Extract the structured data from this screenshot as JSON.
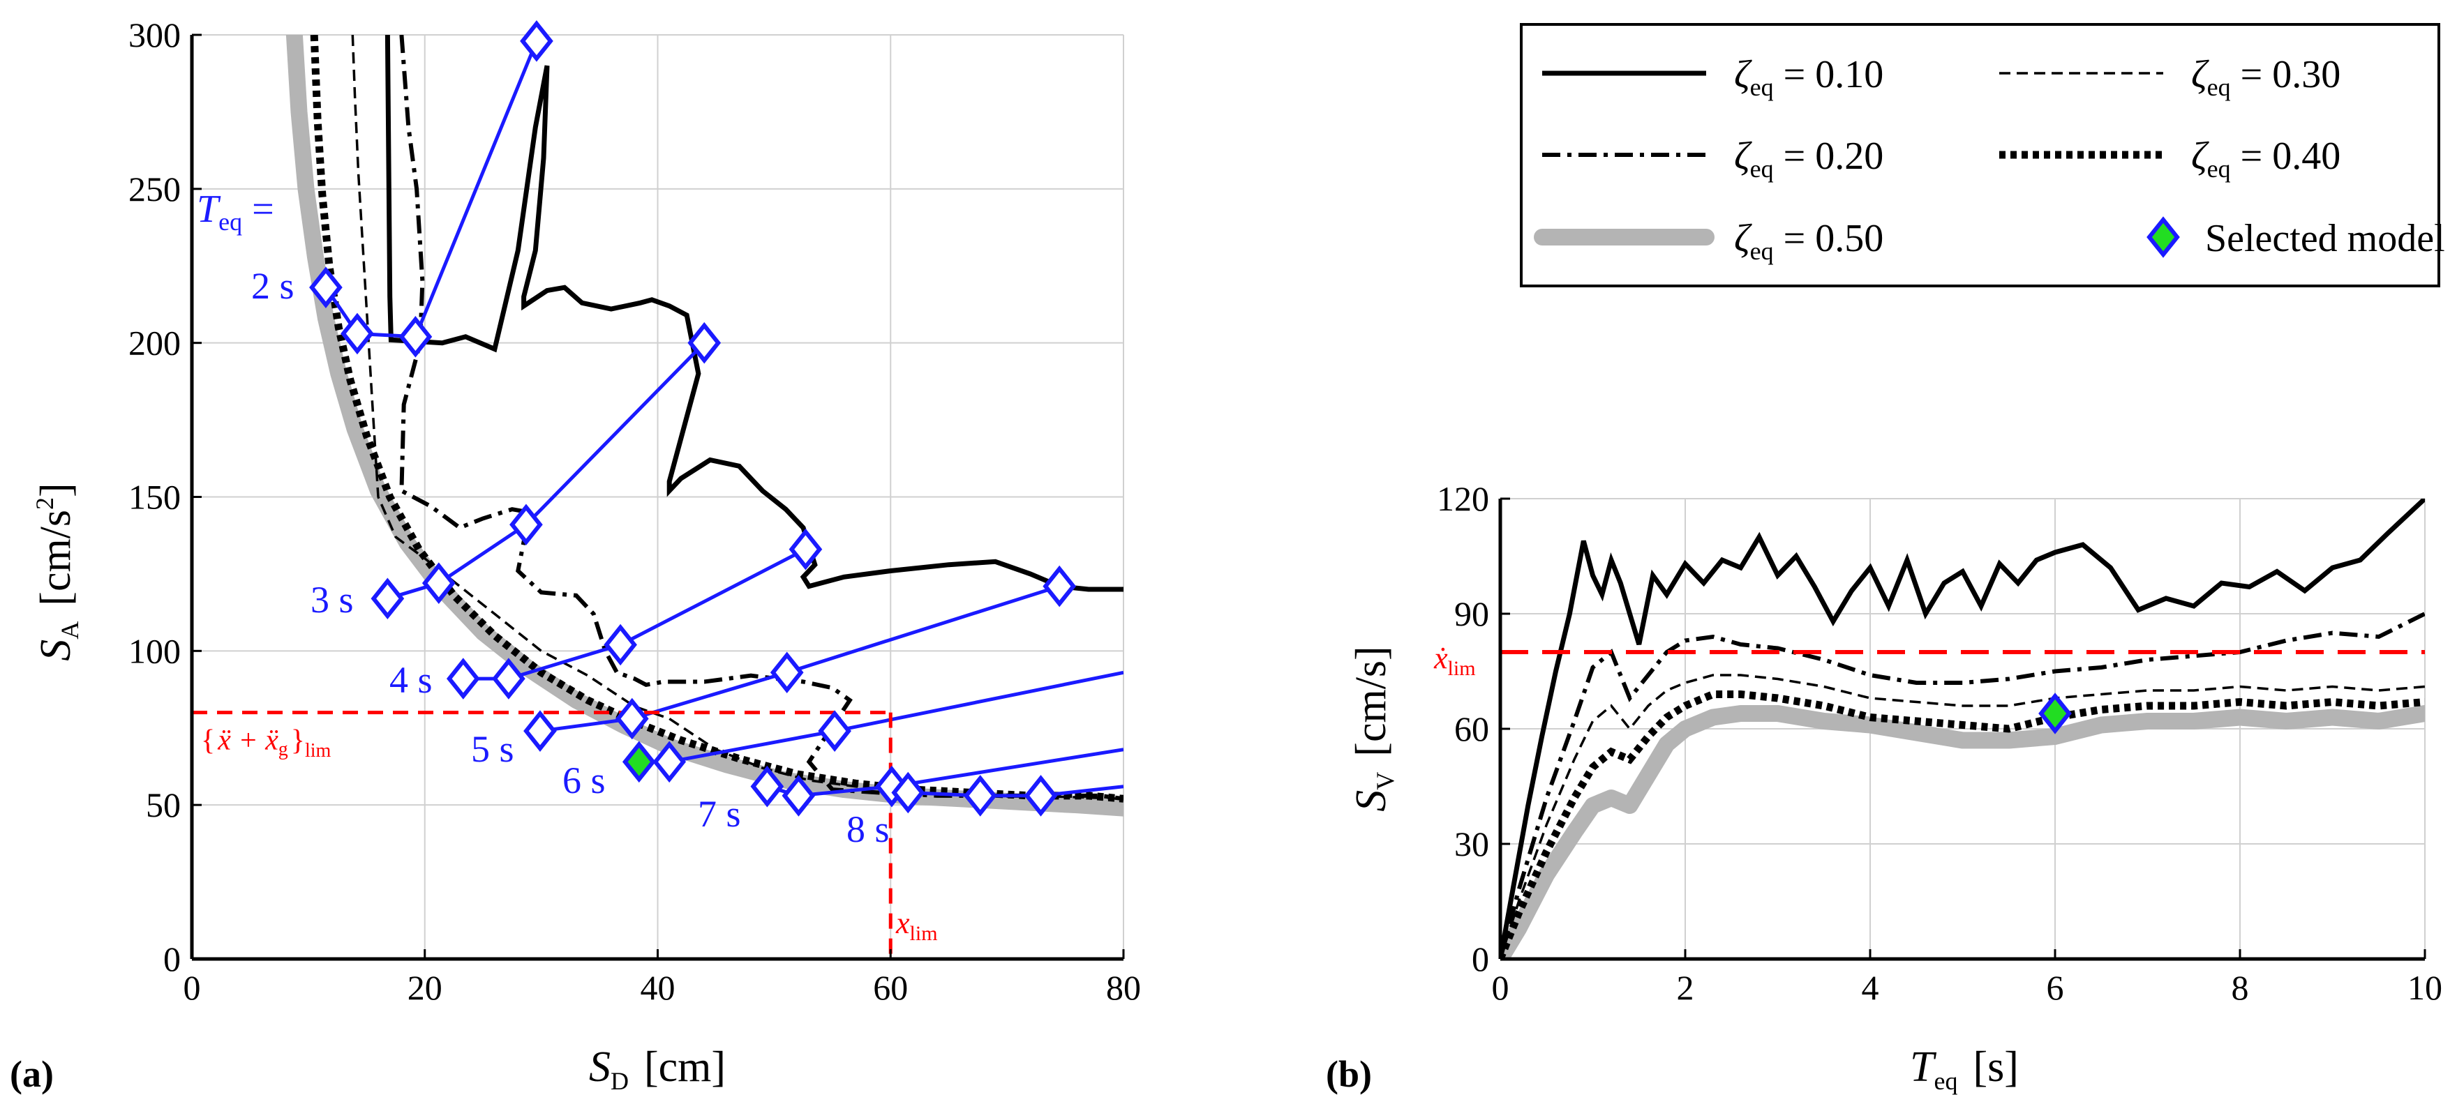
{
  "chart_data": [
    {
      "id": "a",
      "panel_label": "(a)",
      "type": "line",
      "xlabel": {
        "symbol": "S",
        "sub": "D",
        "unit": "[cm]"
      },
      "ylabel": {
        "symbol": "S",
        "sub": "A",
        "unit": "[cm/s",
        "unit_sup": "2",
        "unit_end": "]"
      },
      "xlim": [
        0,
        80
      ],
      "ylim": [
        0,
        300
      ],
      "xticks": [
        0,
        20,
        40,
        60,
        80
      ],
      "yticks": [
        0,
        50,
        100,
        150,
        200,
        250,
        300
      ],
      "grid": true,
      "series": [
        {
          "name": "ζ_eq = 0.50",
          "style": "gray-band",
          "x": [
            8.8,
            9.2,
            9.8,
            10.6,
            11.5,
            12.6,
            14,
            16,
            18.5,
            21.5,
            25,
            29,
            33,
            37,
            41,
            46,
            51,
            56,
            61,
            66,
            71,
            76,
            80
          ],
          "y": [
            300,
            275,
            250,
            228,
            208,
            190,
            172,
            152,
            135,
            120,
            106,
            94,
            84,
            76,
            69,
            63,
            58,
            55,
            53,
            52,
            51,
            50,
            49
          ]
        },
        {
          "name": "ζ_eq = 0.40",
          "style": "dotted",
          "x": [
            10.5,
            10.8,
            11.2,
            11.8,
            12.6,
            13.6,
            15,
            17,
            19.5,
            22.5,
            26,
            30,
            34,
            38,
            42,
            47,
            52,
            57,
            62,
            67,
            72,
            77,
            80
          ],
          "y": [
            300,
            272,
            248,
            225,
            205,
            188,
            170,
            150,
            133,
            118,
            105,
            93,
            84,
            77,
            71,
            65,
            60,
            57,
            55,
            54,
            53,
            53,
            52
          ]
        },
        {
          "name": "ζ_eq = 0.30",
          "style": "dashed",
          "x": [
            13.8,
            14.0,
            14.3,
            14.7,
            15.1,
            15.5,
            16,
            17.5,
            20,
            23,
            26,
            30,
            34,
            38,
            41,
            45,
            49,
            53,
            57,
            62,
            67,
            72,
            80
          ],
          "y": [
            300,
            280,
            255,
            230,
            205,
            180,
            150,
            137,
            130,
            121,
            112,
            100,
            92,
            82,
            78,
            68,
            62,
            58,
            56,
            54,
            53,
            53,
            52
          ]
        },
        {
          "name": "ζ_eq = 0.20",
          "style": "dashdot",
          "x": [
            18.0,
            18.6,
            19.3,
            19.8,
            19.6,
            18.2,
            18.0,
            20.5,
            23,
            25,
            27.5,
            29,
            28,
            30,
            33,
            34.5,
            35.5,
            36.5,
            38,
            39,
            40.5,
            44,
            48,
            52.5,
            55,
            56.5,
            53,
            55,
            59,
            64,
            69,
            74,
            78,
            80
          ],
          "y": [
            300,
            270,
            250,
            220,
            200,
            180,
            152,
            147,
            140,
            143,
            146,
            145,
            126,
            119,
            118,
            112,
            100,
            93,
            91,
            89,
            90,
            90,
            92,
            90,
            88,
            84,
            64,
            55,
            54,
            53,
            53,
            53,
            53,
            52
          ]
        },
        {
          "name": "ζ_eq = 0.10",
          "style": "solid",
          "x": [
            16.8,
            17.0,
            17.1,
            21.5,
            23.5,
            26,
            28,
            29.5,
            30.5,
            30.2,
            29.5,
            28.5,
            28.5,
            30.5,
            32,
            33.5,
            36,
            38.5,
            39.5,
            41,
            42.5,
            43.5,
            41,
            41,
            42,
            44.5,
            47,
            49,
            51,
            52.5,
            53.5,
            52.5,
            53,
            56,
            60,
            65,
            69,
            72,
            74.5,
            77,
            80
          ],
          "y": [
            300,
            215,
            201,
            200,
            202,
            198,
            230,
            270,
            290,
            260,
            230,
            215,
            212,
            217,
            218,
            213,
            211,
            213,
            214,
            212,
            209,
            190,
            155,
            152,
            156,
            162,
            160,
            152,
            146,
            140,
            128,
            124,
            121,
            124,
            126,
            128,
            129,
            125,
            121,
            120,
            120
          ]
        },
        {
          "name": "Teq = 2 s",
          "style": "blue",
          "x": [
            11.5,
            14.2,
            19.2
          ],
          "y": [
            218,
            203,
            202
          ]
        },
        {
          "name": "Teq = 3 s (upper)",
          "style": "blue",
          "x": [
            19.2,
            29.6
          ],
          "y": [
            202,
            298
          ]
        },
        {
          "name": "Teq = 3 s",
          "style": "blue",
          "x": [
            16.8,
            21.2,
            28.7,
            44.0
          ],
          "y": [
            117,
            122,
            141,
            200
          ]
        },
        {
          "name": "Teq = 4 s",
          "style": "blue",
          "x": [
            23.3,
            27.2,
            36.8,
            52.7
          ],
          "y": [
            91,
            91,
            102,
            133
          ]
        },
        {
          "name": "Teq = 5 s",
          "style": "blue",
          "x": [
            29.9,
            37.8,
            51.1,
            74.5
          ],
          "y": [
            74,
            78,
            93,
            121
          ]
        },
        {
          "name": "Teq = 6 s",
          "style": "blue",
          "x": [
            38.4,
            41.0,
            55.2,
            80
          ],
          "y": [
            64,
            64,
            74,
            93
          ]
        },
        {
          "name": "Teq = 7 s",
          "style": "blue",
          "x": [
            49.4,
            52.1,
            60.1,
            80
          ],
          "y": [
            56,
            53,
            56,
            68
          ]
        },
        {
          "name": "Teq = 8 s",
          "style": "blue",
          "x": [
            61.5,
            67.7,
            72.9,
            80
          ],
          "y": [
            54,
            53,
            53,
            56
          ]
        }
      ],
      "diamonds": [
        [
          11.5,
          218
        ],
        [
          14.2,
          203
        ],
        [
          19.2,
          202
        ],
        [
          29.6,
          298
        ],
        [
          16.8,
          117
        ],
        [
          21.2,
          122
        ],
        [
          28.7,
          141
        ],
        [
          44.0,
          200
        ],
        [
          23.3,
          91
        ],
        [
          27.2,
          91
        ],
        [
          36.8,
          102
        ],
        [
          52.7,
          133
        ],
        [
          29.9,
          74
        ],
        [
          37.8,
          78
        ],
        [
          51.1,
          93
        ],
        [
          74.5,
          121
        ],
        [
          41.0,
          64
        ],
        [
          55.2,
          74
        ],
        [
          49.4,
          56
        ],
        [
          52.1,
          53
        ],
        [
          60.1,
          56
        ],
        [
          61.5,
          54
        ],
        [
          67.7,
          53
        ],
        [
          72.9,
          53
        ]
      ],
      "selected_model": [
        38.4,
        64
      ],
      "reference_lines": {
        "acc_limit_y": 80,
        "disp_limit_x": 60
      },
      "annotations": {
        "teq_eq": "T",
        "teq_sub": "eq",
        "teq_equals": " =",
        "periods": [
          "2 s",
          "3 s",
          "4 s",
          "5 s",
          "6 s",
          "7 s",
          "8 s"
        ],
        "acc_limit_open": "{",
        "acc_limit_expr": "ẍ + ẍ",
        "acc_limit_g": "g",
        "acc_limit_close": "}",
        "acc_limit_sub": "lim",
        "disp_limit": "x",
        "disp_limit_sub": "lim"
      }
    },
    {
      "id": "b",
      "panel_label": "(b)",
      "type": "line",
      "xlabel": {
        "symbol": "T",
        "sub": "eq",
        "unit": "[s]"
      },
      "ylabel": {
        "symbol": "S",
        "sub": "V",
        "unit": "[cm/s]"
      },
      "xlim": [
        0,
        10
      ],
      "ylim": [
        0,
        120
      ],
      "xticks": [
        0,
        2,
        4,
        6,
        8,
        10
      ],
      "yticks": [
        0,
        30,
        60,
        90,
        120
      ],
      "grid": true,
      "series": [
        {
          "name": "ζ_eq = 0.50",
          "style": "gray-band",
          "x": [
            0,
            0.2,
            0.5,
            0.8,
            1.0,
            1.2,
            1.4,
            1.6,
            1.8,
            2.0,
            2.3,
            2.6,
            3.0,
            3.5,
            4.0,
            4.5,
            5.0,
            5.5,
            6.0,
            6.5,
            7.0,
            7.5,
            8.0,
            8.5,
            9.0,
            9.5,
            10
          ],
          "y": [
            0,
            8,
            22,
            33,
            40,
            42,
            40,
            48,
            56,
            60,
            63,
            64,
            64,
            62,
            61,
            59,
            57,
            57,
            58,
            61,
            62,
            62,
            63,
            62,
            63,
            62,
            64
          ]
        },
        {
          "name": "ζ_eq = 0.40",
          "style": "dotted",
          "x": [
            0,
            0.2,
            0.5,
            0.8,
            1.0,
            1.2,
            1.4,
            1.6,
            1.8,
            2.0,
            2.3,
            2.6,
            3.0,
            3.5,
            4.0,
            4.5,
            5.0,
            5.5,
            6.0,
            6.5,
            7.0,
            7.5,
            8.0,
            8.5,
            9.0,
            9.5,
            10
          ],
          "y": [
            0,
            12,
            28,
            42,
            50,
            54,
            52,
            58,
            63,
            66,
            69,
            69,
            68,
            66,
            63,
            62,
            61,
            60,
            63,
            65,
            66,
            66,
            67,
            66,
            67,
            66,
            67
          ]
        },
        {
          "name": "ζ_eq = 0.30",
          "style": "dashed",
          "x": [
            0,
            0.2,
            0.5,
            0.8,
            1.0,
            1.2,
            1.4,
            1.6,
            1.8,
            2.0,
            2.3,
            2.6,
            3.0,
            3.5,
            4.0,
            4.5,
            5.0,
            5.5,
            6.0,
            6.5,
            7.0,
            7.5,
            8.0,
            8.5,
            9.0,
            9.5,
            10
          ],
          "y": [
            0,
            15,
            35,
            52,
            62,
            66,
            60,
            66,
            70,
            72,
            74,
            74,
            73,
            71,
            68,
            67,
            66,
            66,
            68,
            69,
            70,
            70,
            71,
            70,
            71,
            70,
            71
          ]
        },
        {
          "name": "ζ_eq = 0.20",
          "style": "dashdot",
          "x": [
            0,
            0.2,
            0.5,
            0.8,
            1.0,
            1.2,
            1.4,
            1.6,
            1.8,
            2.0,
            2.3,
            2.6,
            3.0,
            3.5,
            4.0,
            4.5,
            5.0,
            5.5,
            6.0,
            6.5,
            7.0,
            7.5,
            8.0,
            8.5,
            9.0,
            9.5,
            10
          ],
          "y": [
            0,
            18,
            42,
            62,
            76,
            80,
            68,
            74,
            80,
            83,
            84,
            82,
            81,
            78,
            74,
            72,
            72,
            73,
            75,
            76,
            78,
            79,
            80,
            83,
            85,
            84,
            90
          ]
        },
        {
          "name": "ζ_eq = 0.10",
          "style": "solid",
          "x": [
            0,
            0.15,
            0.3,
            0.45,
            0.6,
            0.75,
            0.9,
            1.0,
            1.1,
            1.2,
            1.3,
            1.4,
            1.5,
            1.65,
            1.8,
            2.0,
            2.2,
            2.4,
            2.6,
            2.8,
            3.0,
            3.2,
            3.4,
            3.6,
            3.8,
            4.0,
            4.2,
            4.4,
            4.6,
            4.8,
            5.0,
            5.2,
            5.4,
            5.6,
            5.8,
            6.0,
            6.3,
            6.6,
            6.9,
            7.2,
            7.5,
            7.8,
            8.1,
            8.4,
            8.7,
            9.0,
            9.3,
            9.6,
            10
          ],
          "y": [
            0,
            20,
            40,
            58,
            75,
            90,
            109,
            100,
            95,
            104,
            98,
            90,
            82,
            100,
            95,
            103,
            98,
            104,
            102,
            110,
            100,
            105,
            97,
            88,
            96,
            102,
            92,
            104,
            90,
            98,
            101,
            92,
            103,
            98,
            104,
            106,
            108,
            102,
            91,
            94,
            92,
            98,
            97,
            101,
            96,
            102,
            104,
            111,
            120
          ]
        }
      ],
      "selected_model": [
        6,
        64
      ],
      "reference_lines": {
        "vel_limit_y": 80
      },
      "annotations": {
        "vel_limit": "ẋ",
        "vel_limit_sub": "lim"
      }
    }
  ],
  "legend": {
    "placement": "top-right",
    "entries": [
      {
        "symbol": "ζ",
        "sub": "eq",
        "value": " = 0.10",
        "style": "solid"
      },
      {
        "symbol": "ζ",
        "sub": "eq",
        "value": " = 0.30",
        "style": "dashed"
      },
      {
        "symbol": "ζ",
        "sub": "eq",
        "value": " = 0.20",
        "style": "dashdot"
      },
      {
        "symbol": "ζ",
        "sub": "eq",
        "value": " = 0.40",
        "style": "dotted"
      },
      {
        "symbol": "ζ",
        "sub": "eq",
        "value": " = 0.50",
        "style": "gray-band"
      },
      {
        "label": "Selected model",
        "style": "diamond"
      }
    ]
  },
  "colors": {
    "blue": "#1a1aff",
    "red": "#ff0000",
    "gray_band": "#b4b4b4",
    "selected_fill": "#22dd22",
    "grid": "#d0d0d0"
  }
}
